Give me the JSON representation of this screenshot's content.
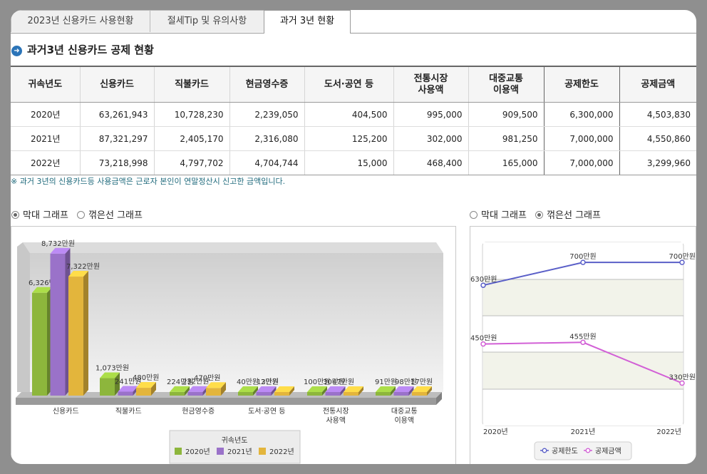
{
  "tabs": [
    {
      "label": "2023년 신용카드 사용현황"
    },
    {
      "label": "절세Tip 및 유의사항"
    },
    {
      "label": "과거 3년 현황"
    }
  ],
  "section_title": "과거3년 신용카드 공제 현황",
  "table": {
    "headers": [
      {
        "l1": "귀속년도",
        "l2": ""
      },
      {
        "l1": "신용카드",
        "l2": ""
      },
      {
        "l1": "직불카드",
        "l2": ""
      },
      {
        "l1": "현금영수증",
        "l2": ""
      },
      {
        "l1": "도서·공연 등",
        "l2": ""
      },
      {
        "l1": "전통시장",
        "l2": "사용액"
      },
      {
        "l1": "대중교통",
        "l2": "이용액"
      },
      {
        "l1": "공제한도",
        "l2": ""
      },
      {
        "l1": "공제금액",
        "l2": ""
      }
    ],
    "rows": [
      [
        "2020년",
        "63,261,943",
        "10,728,230",
        "2,239,050",
        "404,500",
        "995,000",
        "909,500",
        "6,300,000",
        "4,503,830"
      ],
      [
        "2021년",
        "87,321,297",
        "2,405,170",
        "2,316,080",
        "125,200",
        "302,000",
        "981,250",
        "7,000,000",
        "4,550,860"
      ],
      [
        "2022년",
        "73,218,998",
        "4,797,702",
        "4,704,744",
        "15,000",
        "468,400",
        "165,000",
        "7,000,000",
        "3,299,960"
      ]
    ]
  },
  "note": "※ 과거 3년의 신용카드등 사용금액은 근로자 본인이 연말정산시 신고한 금액입니다.",
  "left_toggle": {
    "bar_label": "막대 그래프",
    "line_label": "꺾은선 그래프",
    "selected": "bar"
  },
  "right_toggle": {
    "bar_label": "막대 그래프",
    "line_label": "꺾은선 그래프",
    "selected": "line"
  },
  "colors": {
    "y2020": "#8db63c",
    "y2021": "#9a72c9",
    "y2022": "#e3b53c",
    "limit": "#5a5fc8",
    "amount": "#d260d6"
  },
  "chart_data": [
    {
      "type": "bar",
      "categories": [
        "신용카드",
        "직불카드",
        "현금영수증",
        "도서·공연 등",
        "전통시장 사용액",
        "대중교통 이용액"
      ],
      "category_lines": [
        [
          "신용카드"
        ],
        [
          "직불카드"
        ],
        [
          "현금영수증"
        ],
        [
          "도서·공연 등"
        ],
        [
          "전통시장",
          "사용액"
        ],
        [
          "대중교통",
          "이용액"
        ]
      ],
      "series": [
        {
          "name": "2020년",
          "values": [
            6326,
            1073,
            224,
            40,
            100,
            91
          ]
        },
        {
          "name": "2021년",
          "values": [
            8732,
            241,
            232,
            13,
            30,
            98
          ]
        },
        {
          "name": "2022년",
          "values": [
            7322,
            480,
            470,
            2,
            47,
            17
          ]
        }
      ],
      "labels": [
        [
          "6,326만원",
          "1,073만원",
          "224만원",
          "40만원",
          "100만원",
          "91만원"
        ],
        [
          "8,732만원",
          "241만원",
          "232만원",
          "13만원",
          "30만원",
          "98만원"
        ],
        [
          "7,322만원",
          "480만원",
          "470만원",
          "2만원",
          "47만원",
          "17만원"
        ]
      ],
      "legend_title": "귀속년도",
      "unit": "만원"
    },
    {
      "type": "line",
      "x": [
        "2020년",
        "2021년",
        "2022년"
      ],
      "series": [
        {
          "name": "공제한도",
          "values": [
            630,
            700,
            700
          ],
          "labels": [
            "630만원",
            "700만원",
            "700만원"
          ]
        },
        {
          "name": "공제금액",
          "values": [
            450,
            455,
            330
          ],
          "labels": [
            "450만원",
            "455만원",
            "330만원"
          ]
        }
      ],
      "legend_placement": "bottom",
      "grid": true
    }
  ]
}
